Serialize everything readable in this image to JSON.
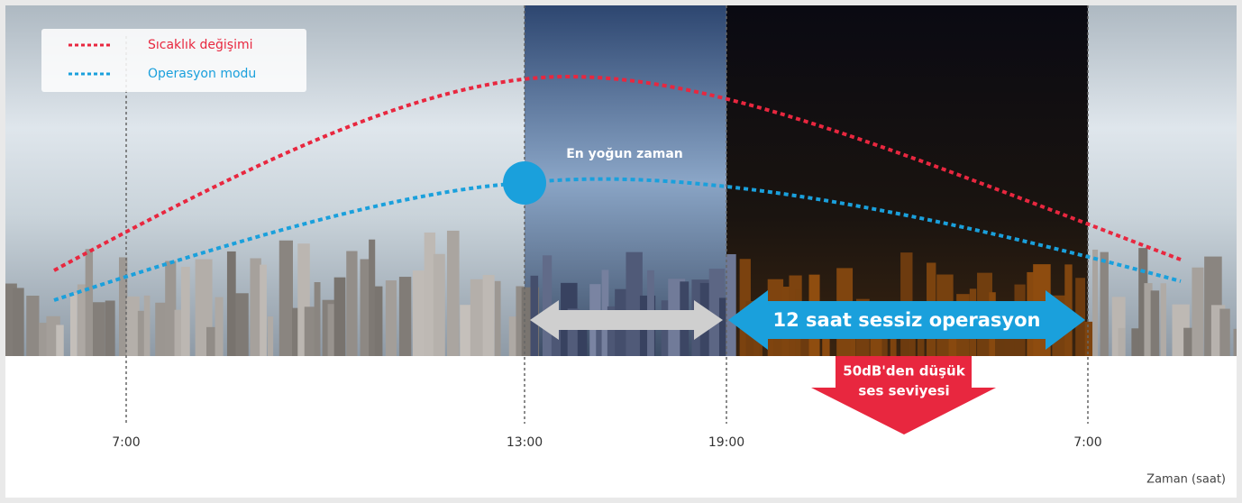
{
  "legend": [
    {
      "label": "Sıcaklık değişimi",
      "color": "#e8273f"
    },
    {
      "label": "Operasyon modu",
      "color": "#1aa0dc"
    }
  ],
  "annotations": {
    "peak": "En yoğun zaman",
    "quiet": "12 saat sessiz operasyon",
    "noise": [
      "50dB'den düşük",
      "ses seviyesi"
    ]
  },
  "time_labels": [
    "7:00",
    "13:00",
    "19:00",
    "7:00"
  ],
  "axis_label": "Zaman (saat)"
}
